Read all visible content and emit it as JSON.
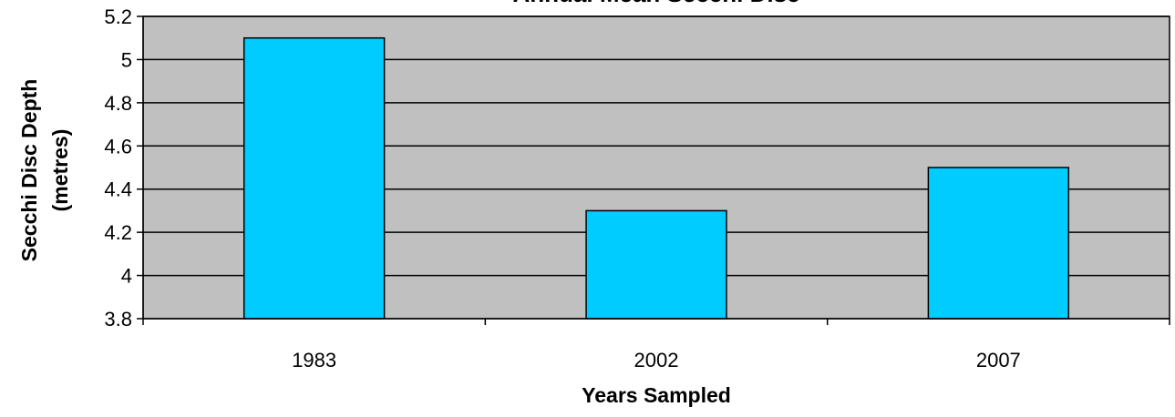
{
  "chart_data": {
    "type": "bar",
    "title": "Annual Mean Secchi Disc",
    "categories": [
      "1983",
      "2002",
      "2007"
    ],
    "values": [
      5.1,
      4.3,
      4.5
    ],
    "xlabel": "Years Sampled",
    "ylabel_line1": "Secchi Disc Depth",
    "ylabel_line2": "(metres)",
    "ylim": [
      3.8,
      5.2
    ],
    "yticks": [
      "3.8",
      "4",
      "4.2",
      "4.4",
      "4.6",
      "4.8",
      "5",
      "5.2"
    ],
    "grid": true,
    "legend": "none",
    "colors": {
      "bar": "#00CCFF",
      "plot_background": "#C0C0C0",
      "axis": "#000000"
    }
  }
}
